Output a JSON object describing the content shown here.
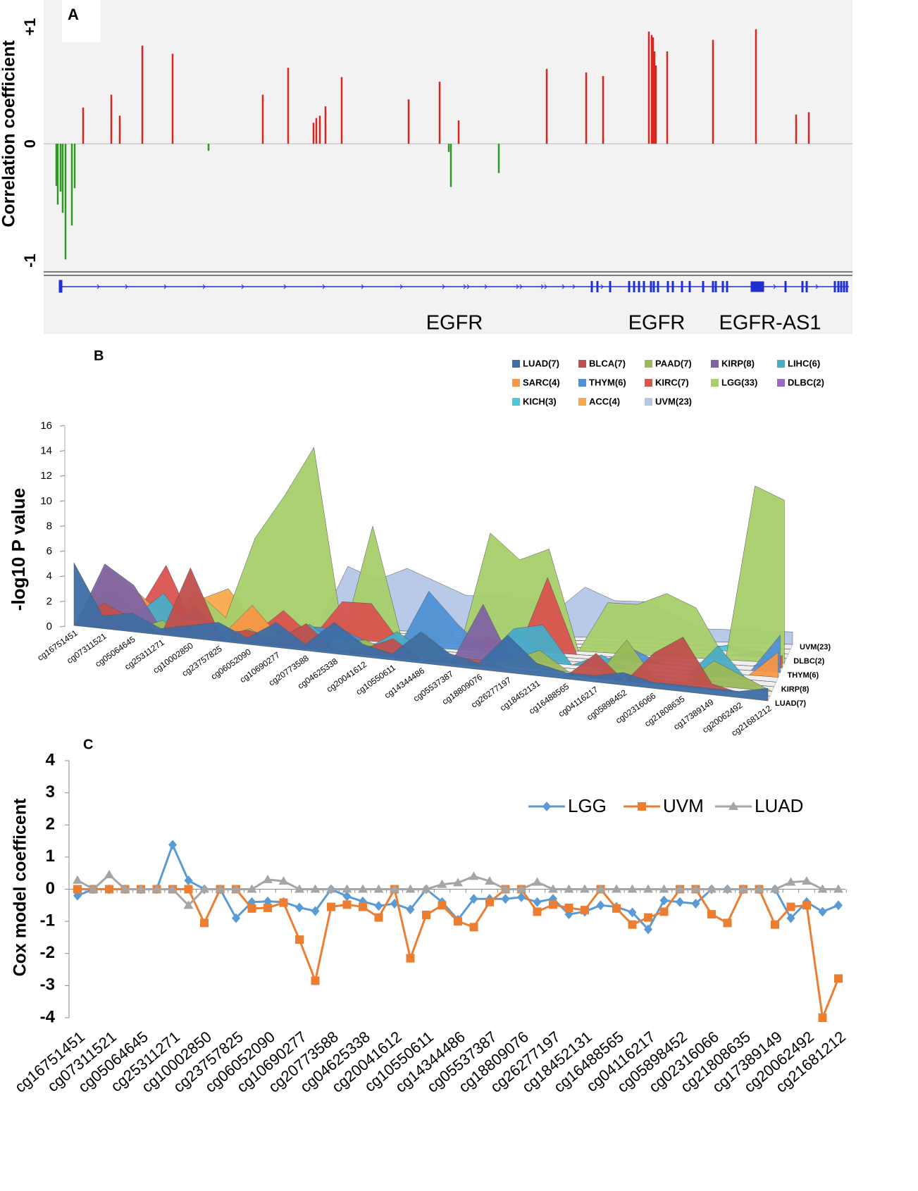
{
  "chart_data": [
    {
      "type": "bar",
      "panel": "A",
      "ylabel": "Correlation coefficient",
      "x": [
        15,
        17,
        21,
        24,
        28,
        37,
        41,
        53,
        93,
        105,
        137,
        180,
        231,
        308,
        344,
        380,
        384,
        389,
        397,
        420,
        515,
        559,
        572,
        575,
        586,
        643,
        711,
        767,
        791,
        856,
        860,
        862,
        864,
        866,
        882,
        947,
        1008,
        1065,
        1083
      ],
      "values": [
        -0.36,
        -0.52,
        -0.41,
        -0.59,
        -0.99,
        -0.7,
        -0.38,
        0.31,
        0.42,
        0.24,
        0.84,
        0.77,
        -0.06,
        0.42,
        0.65,
        0.18,
        0.22,
        0.24,
        0.32,
        0.57,
        0.38,
        0.53,
        -0.07,
        -0.37,
        0.2,
        -0.25,
        0.64,
        0.61,
        0.58,
        0.96,
        0.93,
        0.91,
        0.79,
        0.67,
        0.79,
        0.89,
        0.98,
        0.25,
        0.27
      ],
      "xlim": [
        0,
        1140
      ],
      "ylim": [
        -1.12,
        1.2
      ],
      "yticks": [
        {
          "value": 1,
          "label": "+1"
        },
        0,
        -1
      ],
      "color_positive": "#d7261e",
      "color_negative": "#2e9a22",
      "annotations": [
        "EGFR",
        "EGFR",
        "EGFR-AS1"
      ]
    },
    {
      "type": "area",
      "panel": "B",
      "ylabel": "-log10 P value",
      "categories": [
        "cg16751451",
        "cg07311521",
        "cg05064645",
        "cg25311271",
        "cg10002850",
        "cg23757825",
        "cg06052090",
        "cg10690277",
        "cg20773588",
        "cg04625338",
        "cg20041612",
        "cg10550611",
        "cg14344486",
        "cg05537387",
        "cg18809076",
        "cg26277197",
        "cg18452131",
        "cg16488565",
        "cg04116217",
        "cg05898452",
        "cg02316066",
        "cg21808635",
        "cg17389149",
        "cg20062492",
        "cg21681212"
      ],
      "ylim": [
        0,
        16
      ],
      "yticks": [
        0,
        2,
        4,
        6,
        8,
        10,
        12,
        14,
        16
      ],
      "series": [
        {
          "name": "LUAD(7)",
          "color": "#3d6ea5",
          "values": [
            5,
            1,
            1.5,
            0.5,
            1,
            1.5,
            0.5,
            2,
            0.5,
            2.5,
            1,
            0.5,
            2.5,
            1,
            0.5,
            3,
            1,
            0.5,
            0.5,
            1,
            0.5,
            0.5,
            0.5,
            0.5,
            1
          ]
        },
        {
          "name": "BLCA(7)",
          "color": "#c0504d",
          "values": [
            0,
            2,
            1,
            0,
            5.5,
            0.5,
            1,
            0.5,
            2,
            0,
            0.5,
            1.5,
            0,
            0.5,
            0.5,
            0,
            0,
            0,
            2,
            0,
            2.5,
            4,
            0.5,
            0,
            0
          ]
        },
        {
          "name": "PAAD(7)",
          "color": "#9bbb59",
          "values": [
            0,
            0,
            0,
            1,
            0,
            0,
            1,
            0,
            0,
            0.5,
            1,
            0,
            2,
            0,
            0,
            0.5,
            1.5,
            0,
            0,
            3,
            0,
            0,
            2,
            1,
            0
          ]
        },
        {
          "name": "KIRP(8)",
          "color": "#8064a2",
          "values": [
            0,
            5,
            3.5,
            0,
            0,
            0,
            0,
            0,
            0,
            0,
            0,
            0,
            0,
            0,
            4.5,
            0,
            0,
            0,
            0,
            0,
            0,
            0,
            0,
            0,
            0
          ]
        },
        {
          "name": "LIHC(6)",
          "color": "#4bacc6",
          "values": [
            0,
            0,
            1,
            3,
            0,
            0,
            0,
            0,
            1.5,
            0,
            0,
            1.5,
            0,
            0,
            0,
            2.5,
            3,
            0,
            1,
            0,
            0,
            0,
            2.5,
            0,
            0
          ]
        },
        {
          "name": "SARC(4)",
          "color": "#f79646",
          "values": [
            0,
            4.5,
            3,
            1,
            1,
            0,
            2.5,
            0,
            0,
            0,
            0,
            0,
            0,
            0,
            0,
            0,
            0,
            0,
            0,
            0,
            0,
            0,
            0,
            0,
            2
          ]
        },
        {
          "name": "THYM(6)",
          "color": "#4f91d6",
          "values": [
            0,
            0,
            0,
            0,
            2,
            0,
            0,
            0,
            1,
            1,
            0,
            0,
            4.5,
            2,
            0,
            2,
            0,
            0,
            0,
            1,
            0,
            0,
            0,
            0,
            3
          ]
        },
        {
          "name": "KIRC(7)",
          "color": "#d9534f",
          "values": [
            0,
            3,
            1,
            5,
            0,
            0,
            0,
            2,
            0,
            3,
            3,
            0,
            0,
            0,
            1,
            0,
            6,
            0,
            0,
            0,
            0,
            0,
            0,
            0,
            1
          ]
        },
        {
          "name": "LGG(33)",
          "color": "#a6cf6a",
          "values": [
            0,
            1,
            0,
            0,
            3,
            1,
            7.5,
            11,
            15,
            0,
            9,
            0,
            3,
            0,
            9,
            7,
            8,
            0,
            4,
            4,
            5,
            4,
            0,
            14,
            13
          ]
        },
        {
          "name": "DLBC(2)",
          "color": "#9a6ac2",
          "values": [
            0,
            0,
            0,
            0,
            0,
            0,
            0,
            0,
            0,
            0,
            0,
            0,
            0,
            0,
            0,
            0,
            0,
            0,
            0,
            0,
            0,
            0,
            0,
            0.5,
            0
          ]
        },
        {
          "name": "KICH(3)",
          "color": "#4cc6d9",
          "values": [
            0,
            0,
            0,
            0,
            0,
            0,
            0,
            0,
            0,
            0,
            0,
            0,
            0,
            0,
            0,
            0,
            0,
            0,
            0,
            0,
            0,
            0,
            0.5,
            0,
            0
          ]
        },
        {
          "name": "ACC(4)",
          "color": "#f9a94b",
          "values": [
            0,
            0,
            0,
            0,
            2,
            3,
            0,
            0,
            0,
            0,
            0,
            0,
            0,
            0,
            0,
            0,
            0,
            0,
            0,
            0,
            0,
            0,
            0,
            0,
            0
          ]
        },
        {
          "name": "UVM(23)",
          "color": "#b4c7e7",
          "values": [
            0,
            0,
            0,
            0,
            0,
            0,
            0,
            0,
            0,
            5,
            4,
            5,
            4,
            3,
            3,
            3,
            2,
            4,
            3,
            3,
            2,
            1,
            1,
            1,
            1
          ]
        }
      ]
    },
    {
      "type": "line",
      "panel": "C",
      "ylabel": "Cox model coefficent",
      "categories": [
        "cg16751451",
        null,
        "cg07311521",
        null,
        "cg05064645",
        null,
        "cg25311271",
        null,
        "cg10002850",
        null,
        "cg23757825",
        null,
        "cg06052090",
        null,
        "cg10690277",
        null,
        "cg20773588",
        null,
        "cg04625338",
        null,
        "cg20041612",
        null,
        "cg10550611",
        null,
        "cg14344486",
        null,
        "cg05537387",
        null,
        "cg18809076",
        null,
        "cg26277197",
        null,
        "cg18452131",
        null,
        "cg16488565",
        null,
        "cg04116217",
        null,
        "cg05898452",
        null,
        "cg02316066",
        null,
        "cg21808635",
        null,
        "cg17389149",
        null,
        "cg20062492",
        null,
        "cg21681212"
      ],
      "ylim": [
        -4,
        4
      ],
      "yticks": [
        4,
        3,
        2,
        1,
        0,
        -1,
        -2,
        -3,
        -4
      ],
      "series": [
        {
          "name": "LGG",
          "color": "#5b9bd5",
          "marker": "diamond",
          "values": [
            -0.2,
            0,
            0,
            0,
            0,
            0,
            1.38,
            0.27,
            0,
            0,
            -0.9,
            -0.4,
            -0.38,
            -0.4,
            -0.57,
            -0.68,
            0,
            -0.22,
            -0.38,
            -0.52,
            -0.45,
            -0.63,
            0,
            -0.4,
            -0.95,
            -0.3,
            -0.3,
            -0.3,
            -0.25,
            -0.4,
            -0.3,
            -0.78,
            -0.7,
            -0.5,
            -0.55,
            -0.72,
            -1.25,
            -0.35,
            -0.4,
            -0.45,
            0,
            0,
            0,
            0,
            0,
            -0.9,
            -0.4,
            -0.7,
            -0.5
          ]
        },
        {
          "name": "UVM",
          "color": "#ed7d31",
          "marker": "square",
          "values": [
            0,
            0,
            0,
            0,
            0,
            0,
            0,
            0,
            -1.05,
            0,
            0,
            -0.6,
            -0.58,
            -0.42,
            -1.57,
            -2.85,
            -0.55,
            -0.48,
            -0.55,
            -0.88,
            0,
            -2.15,
            -0.8,
            -0.5,
            -1.0,
            -1.18,
            -0.4,
            0,
            0,
            -0.7,
            -0.48,
            -0.58,
            -0.65,
            0,
            -0.6,
            -1.1,
            -0.88,
            -0.7,
            0,
            0,
            -0.78,
            -1.05,
            0,
            0,
            -1.1,
            -0.55,
            -0.5,
            -4.0,
            -2.78
          ]
        },
        {
          "name": "LUAD",
          "color": "#a5a5a5",
          "marker": "triangle",
          "values": [
            0.28,
            0,
            0.45,
            0,
            0,
            0,
            0,
            -0.5,
            0,
            0,
            0,
            0,
            0.3,
            0.25,
            0,
            0,
            0,
            0,
            0,
            0,
            0,
            0,
            0,
            0.15,
            0.2,
            0.4,
            0.25,
            0,
            0,
            0.22,
            0,
            0,
            0,
            0,
            0,
            0,
            0,
            0,
            0,
            0,
            0,
            0,
            0,
            0,
            0,
            0.22,
            0.25,
            0,
            0
          ]
        }
      ]
    }
  ]
}
